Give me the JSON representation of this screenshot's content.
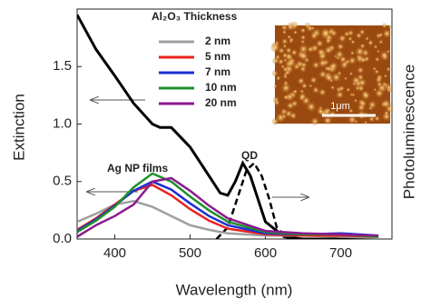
{
  "chart_data": {
    "type": "line",
    "x_label": "Wavelength (nm)",
    "y_label": "Extinction",
    "y2_label": "Photoluminescence",
    "xlim": [
      350,
      768
    ],
    "ylim": [
      0,
      2.0
    ],
    "xticks": [
      400,
      500,
      600,
      700
    ],
    "yticks": [
      {
        "value": 0,
        "label": "0.0"
      },
      0.5,
      {
        "value": 1,
        "label": "1.0"
      },
      1.5
    ],
    "legend_title": "Al₂O₃ Thickness",
    "series": [
      {
        "name": "2 nm",
        "color": "#a0a0a0",
        "x": [
          350,
          375,
          400,
          425,
          450,
          475,
          500,
          525,
          550,
          600,
          650,
          700,
          750
        ],
        "values": [
          0.15,
          0.22,
          0.3,
          0.33,
          0.28,
          0.2,
          0.12,
          0.08,
          0.05,
          0.03,
          0.03,
          0.02,
          0.01
        ]
      },
      {
        "name": "5 nm",
        "color": "#e8231c",
        "x": [
          350,
          375,
          400,
          425,
          450,
          475,
          500,
          525,
          550,
          600,
          650,
          700,
          750
        ],
        "values": [
          0.08,
          0.18,
          0.3,
          0.42,
          0.47,
          0.38,
          0.26,
          0.16,
          0.09,
          0.04,
          0.03,
          0.03,
          0.02
        ]
      },
      {
        "name": "7 nm",
        "color": "#1c2fd6",
        "x": [
          350,
          375,
          400,
          425,
          450,
          475,
          500,
          525,
          550,
          600,
          650,
          700,
          750
        ],
        "values": [
          0.07,
          0.17,
          0.29,
          0.42,
          0.5,
          0.43,
          0.31,
          0.2,
          0.12,
          0.05,
          0.04,
          0.05,
          0.03
        ]
      },
      {
        "name": "10 nm",
        "color": "#1f8f2a",
        "x": [
          350,
          375,
          400,
          425,
          450,
          475,
          500,
          525,
          550,
          600,
          650,
          700,
          750
        ],
        "values": [
          0.06,
          0.16,
          0.28,
          0.45,
          0.57,
          0.5,
          0.37,
          0.25,
          0.15,
          0.06,
          0.04,
          0.04,
          0.02
        ]
      },
      {
        "name": "20 nm",
        "color": "#8b1a8f",
        "x": [
          350,
          375,
          400,
          425,
          450,
          475,
          500,
          525,
          550,
          600,
          650,
          700,
          750
        ],
        "values": [
          0.02,
          0.12,
          0.2,
          0.3,
          0.5,
          0.53,
          0.42,
          0.29,
          0.18,
          0.07,
          0.05,
          0.04,
          0.03
        ]
      }
    ],
    "other_lines": [
      {
        "color": "#000000",
        "style": "solid",
        "x": [
          350,
          375,
          400,
          425,
          450,
          460,
          475,
          500,
          525,
          540,
          550,
          560,
          570,
          580,
          600,
          625,
          650,
          700,
          750
        ],
        "values": [
          1.95,
          1.65,
          1.42,
          1.18,
          1.0,
          0.97,
          0.97,
          0.8,
          0.55,
          0.4,
          0.38,
          0.5,
          0.66,
          0.55,
          0.15,
          0.02,
          0,
          0,
          0
        ]
      },
      {
        "color": "#000000",
        "style": "dashed",
        "x": [
          535,
          550,
          565,
          575,
          585,
          595,
          605,
          615,
          630
        ],
        "values": [
          0,
          0.1,
          0.4,
          0.6,
          0.66,
          0.55,
          0.35,
          0.1,
          0
        ]
      }
    ],
    "annotations": [
      "Ag NP films",
      "QD"
    ],
    "inset_scale_label": "1μm"
  }
}
